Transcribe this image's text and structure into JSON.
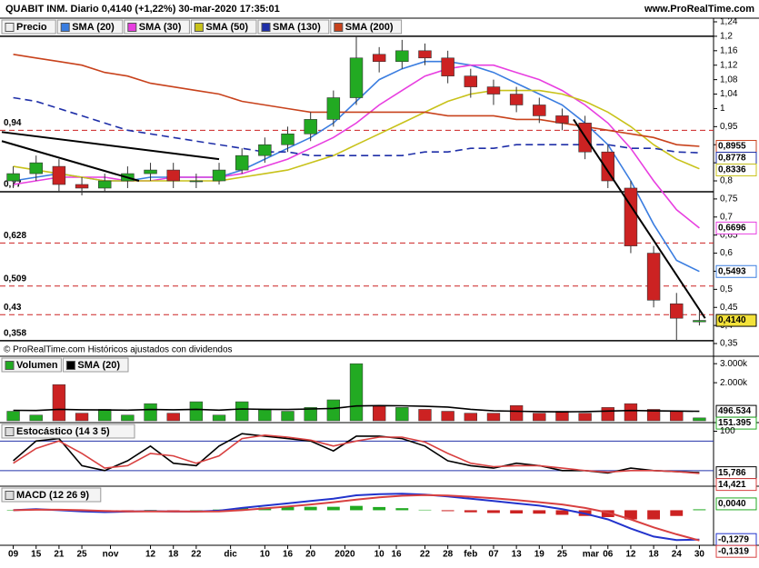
{
  "chart_data": [
    {
      "type": "candlestick",
      "title": "QUABIT INM. Diario 0,4140 (+1,22%) 30-mar-2020 17:35:01",
      "source": "www.ProRealTime.com",
      "note": "© ProRealTime.com Históricos ajustados con dividendos",
      "x": [
        2,
        6,
        10,
        14,
        18,
        22,
        26,
        30,
        34,
        38,
        42,
        46,
        50,
        54,
        58,
        62,
        66,
        70,
        74,
        78,
        82,
        86,
        90,
        94,
        98,
        102,
        106,
        110,
        114,
        118,
        122
      ],
      "xlim": [
        0,
        124
      ],
      "xticks": [
        {
          "value": 2,
          "label": "09"
        },
        {
          "value": 6,
          "label": "15"
        },
        {
          "value": 10,
          "label": "21"
        },
        {
          "value": 14,
          "label": "25"
        },
        {
          "value": 19,
          "label": "nov"
        },
        {
          "value": 26,
          "label": "12"
        },
        {
          "value": 30,
          "label": "18"
        },
        {
          "value": 34,
          "label": "22"
        },
        {
          "value": 40,
          "label": "dic"
        },
        {
          "value": 46,
          "label": "10"
        },
        {
          "value": 50,
          "label": "16"
        },
        {
          "value": 54,
          "label": "20"
        },
        {
          "value": 60,
          "label": "2020"
        },
        {
          "value": 66,
          "label": "10"
        },
        {
          "value": 69,
          "label": "16"
        },
        {
          "value": 74,
          "label": "22"
        },
        {
          "value": 78,
          "label": "28"
        },
        {
          "value": 82,
          "label": "feb"
        },
        {
          "value": 86,
          "label": "07"
        },
        {
          "value": 90,
          "label": "13"
        },
        {
          "value": 94,
          "label": "19"
        },
        {
          "value": 98,
          "label": "25"
        },
        {
          "value": 103,
          "label": "mar"
        },
        {
          "value": 106,
          "label": "06"
        },
        {
          "value": 110,
          "label": "12"
        },
        {
          "value": 114,
          "label": "18"
        },
        {
          "value": 118,
          "label": "24"
        },
        {
          "value": 122,
          "label": "30"
        }
      ],
      "ylim": [
        0.34,
        1.245
      ],
      "yticks": [
        {
          "value": 1.24,
          "label": "1,24"
        },
        {
          "value": 1.2,
          "label": "1,2"
        },
        {
          "value": 1.16,
          "label": "1,16"
        },
        {
          "value": 1.12,
          "label": "1,12"
        },
        {
          "value": 1.08,
          "label": "1,08"
        },
        {
          "value": 1.04,
          "label": "1,04"
        },
        1,
        {
          "value": 0.95,
          "label": "0,95"
        },
        {
          "value": 0.9,
          "label": "0,9"
        },
        {
          "value": 0.85,
          "label": "0,85"
        },
        {
          "value": 0.8,
          "label": "0,8"
        },
        {
          "value": 0.75,
          "label": "0,75"
        },
        {
          "value": 0.7,
          "label": "0,7"
        },
        {
          "value": 0.65,
          "label": "0,65"
        },
        {
          "value": 0.6,
          "label": "0,6"
        },
        {
          "value": 0.55,
          "label": "0,55"
        },
        {
          "value": 0.5,
          "label": "0,5"
        },
        {
          "value": 0.45,
          "label": "0,45"
        },
        {
          "value": 0.4,
          "label": "0,4"
        },
        {
          "value": 0.35,
          "label": "0,35"
        }
      ],
      "candles": {
        "name": "Precio",
        "up_color": "#22aa22",
        "down_color": "#cc2222",
        "last_label": "0,4140",
        "open": [
          0.8,
          0.82,
          0.84,
          0.79,
          0.78,
          0.8,
          0.82,
          0.83,
          0.8,
          0.8,
          0.83,
          0.87,
          0.9,
          0.93,
          0.97,
          1.03,
          1.15,
          1.13,
          1.16,
          1.14,
          1.09,
          1.06,
          1.04,
          1.01,
          0.98,
          0.96,
          0.88,
          0.78,
          0.6,
          0.46,
          0.41
        ],
        "high": [
          0.84,
          0.87,
          0.86,
          0.81,
          0.82,
          0.84,
          0.85,
          0.85,
          0.82,
          0.85,
          0.89,
          0.92,
          0.95,
          0.99,
          1.05,
          1.2,
          1.17,
          1.19,
          1.18,
          1.16,
          1.11,
          1.08,
          1.06,
          1.03,
          1.0,
          0.98,
          0.9,
          0.8,
          0.62,
          0.49,
          0.44
        ],
        "low": [
          0.78,
          0.8,
          0.77,
          0.76,
          0.77,
          0.78,
          0.8,
          0.78,
          0.78,
          0.79,
          0.82,
          0.85,
          0.88,
          0.91,
          0.95,
          1.01,
          1.1,
          1.11,
          1.12,
          1.07,
          1.03,
          1.01,
          0.99,
          0.96,
          0.94,
          0.86,
          0.78,
          0.6,
          0.45,
          0.36,
          0.4
        ],
        "close": [
          0.82,
          0.85,
          0.79,
          0.78,
          0.8,
          0.82,
          0.83,
          0.8,
          0.8,
          0.83,
          0.87,
          0.9,
          0.93,
          0.97,
          1.03,
          1.14,
          1.13,
          1.16,
          1.14,
          1.09,
          1.06,
          1.04,
          1.01,
          0.98,
          0.96,
          0.88,
          0.8,
          0.62,
          0.47,
          0.42,
          0.414
        ]
      },
      "series": [
        {
          "name": "SMA (20)",
          "color": "#3a7de0",
          "last_label": "0,5493",
          "values": [
            0.8,
            0.81,
            0.82,
            0.81,
            0.8,
            0.8,
            0.81,
            0.81,
            0.81,
            0.81,
            0.83,
            0.86,
            0.89,
            0.92,
            0.96,
            1.02,
            1.08,
            1.11,
            1.13,
            1.13,
            1.12,
            1.1,
            1.07,
            1.04,
            1.01,
            0.96,
            0.9,
            0.8,
            0.68,
            0.58,
            0.5493
          ]
        },
        {
          "name": "SMA (30)",
          "color": "#e83fe0",
          "last_label": "0,6696",
          "values": [
            0.79,
            0.8,
            0.81,
            0.81,
            0.81,
            0.8,
            0.8,
            0.81,
            0.81,
            0.81,
            0.82,
            0.84,
            0.86,
            0.89,
            0.92,
            0.96,
            1.01,
            1.05,
            1.09,
            1.11,
            1.12,
            1.12,
            1.1,
            1.08,
            1.05,
            1.01,
            0.96,
            0.89,
            0.8,
            0.72,
            0.6696
          ]
        },
        {
          "name": "SMA (50)",
          "color": "#c8c21a",
          "last_label": "0,8336",
          "values": [
            0.84,
            0.83,
            0.82,
            0.81,
            0.8,
            0.8,
            0.8,
            0.8,
            0.8,
            0.8,
            0.81,
            0.82,
            0.83,
            0.85,
            0.87,
            0.9,
            0.93,
            0.96,
            0.99,
            1.02,
            1.04,
            1.05,
            1.05,
            1.05,
            1.04,
            1.02,
            0.99,
            0.95,
            0.9,
            0.86,
            0.8336
          ]
        },
        {
          "name": "SMA (130)",
          "color": "#1f2fa8",
          "dashed": true,
          "last_label": "0,8778",
          "values": [
            1.03,
            1.02,
            1.0,
            0.98,
            0.96,
            0.94,
            0.93,
            0.92,
            0.91,
            0.9,
            0.89,
            0.88,
            0.88,
            0.87,
            0.87,
            0.87,
            0.87,
            0.87,
            0.88,
            0.88,
            0.89,
            0.89,
            0.9,
            0.9,
            0.9,
            0.9,
            0.9,
            0.89,
            0.89,
            0.88,
            0.8778
          ]
        },
        {
          "name": "SMA (200)",
          "color": "#c8421c",
          "last_label": "0,8955",
          "values": [
            1.15,
            1.14,
            1.13,
            1.12,
            1.1,
            1.09,
            1.07,
            1.06,
            1.05,
            1.04,
            1.02,
            1.01,
            1.0,
            0.99,
            0.99,
            0.99,
            0.99,
            0.99,
            0.99,
            0.98,
            0.98,
            0.98,
            0.97,
            0.97,
            0.96,
            0.95,
            0.94,
            0.93,
            0.92,
            0.9,
            0.8955
          ]
        }
      ],
      "levels": [
        {
          "value": 1.2,
          "style": "solid"
        },
        {
          "value": 0.94,
          "label": "0,94",
          "style": "dashed"
        },
        {
          "value": 0.77,
          "label": "0,77",
          "style": "solid"
        },
        {
          "value": 0.628,
          "label": "0,628",
          "style": "dashed"
        },
        {
          "value": 0.509,
          "label": "0,509",
          "style": "dashed"
        },
        {
          "value": 0.43,
          "label": "0,43",
          "style": "dashed"
        },
        {
          "value": 0.358,
          "label": "0,358",
          "style": "solid"
        }
      ],
      "trendlines": [
        {
          "x": [
            0,
            38
          ],
          "y": [
            0.935,
            0.86
          ]
        },
        {
          "x": [
            0,
            24
          ],
          "y": [
            0.91,
            0.8
          ]
        },
        {
          "x": [
            100,
            123
          ],
          "y": [
            0.97,
            0.42
          ]
        }
      ]
    },
    {
      "type": "volume",
      "ylim": [
        0,
        3200000
      ],
      "yticks": [
        {
          "value": 3000000,
          "label": "3.000k"
        },
        {
          "value": 2000000,
          "label": "2.000k"
        }
      ],
      "series": [
        {
          "name": "Volumen",
          "color": "#22aa22",
          "last_label": "151.395",
          "values": [
            500000,
            300000,
            1900000,
            400000,
            600000,
            300000,
            900000,
            400000,
            1000000,
            300000,
            1000000,
            600000,
            500000,
            700000,
            1100000,
            3000000,
            800000,
            700000,
            600000,
            500000,
            400000,
            400000,
            800000,
            400000,
            500000,
            400000,
            700000,
            900000,
            600000,
            500000,
            151395
          ]
        },
        {
          "name": "SMA (20)",
          "color": "#000000",
          "last_label": "496.534",
          "values": [
            550000,
            540000,
            600000,
            580000,
            570000,
            560000,
            590000,
            580000,
            600000,
            560000,
            620000,
            600000,
            590000,
            620000,
            650000,
            780000,
            800000,
            790000,
            760000,
            720000,
            600000,
            520000,
            500000,
            480000,
            470000,
            480000,
            510000,
            540000,
            520000,
            510000,
            496534
          ]
        }
      ]
    },
    {
      "type": "stochastic",
      "title": "Estocástico (14 3 5)",
      "ylim": [
        -8,
        112
      ],
      "yticks": [
        100
      ],
      "levels": [
        80,
        20
      ],
      "level_color": "#2233aa",
      "series": [
        {
          "color": "#000000",
          "last_label": "15,786",
          "values": [
            40,
            80,
            85,
            30,
            20,
            40,
            70,
            35,
            30,
            70,
            95,
            90,
            85,
            80,
            60,
            90,
            90,
            85,
            70,
            40,
            30,
            25,
            35,
            30,
            20,
            20,
            15,
            25,
            20,
            18,
            15.786
          ]
        },
        {
          "color": "#d84040",
          "last_label": "14,421",
          "values": [
            35,
            65,
            80,
            55,
            25,
            30,
            55,
            50,
            35,
            50,
            85,
            92,
            88,
            82,
            70,
            80,
            88,
            88,
            78,
            55,
            35,
            28,
            30,
            30,
            25,
            20,
            17,
            20,
            20,
            18,
            14.421
          ]
        }
      ]
    },
    {
      "type": "macd",
      "title": "MACD (12 26 9)",
      "ylim": [
        -0.145,
        0.085
      ],
      "histogram": {
        "up_color": "#22aa22",
        "down_color": "#cc2222",
        "last_label": "0,0040",
        "values": [
          0,
          0.003,
          -0.002,
          -0.005,
          -0.005,
          -0.001,
          0.001,
          -0.001,
          0,
          0.003,
          0.01,
          0.012,
          0.014,
          0.015,
          0.015,
          0.019,
          0.014,
          0.009,
          0.002,
          -0.004,
          -0.009,
          -0.012,
          -0.014,
          -0.015,
          -0.02,
          -0.025,
          -0.03,
          -0.04,
          -0.04,
          -0.025,
          0.004
        ]
      },
      "series": [
        {
          "color": "#2233cc",
          "last_label": "-0,1279",
          "values": [
            0,
            0.005,
            0,
            -0.005,
            -0.008,
            -0.006,
            -0.004,
            -0.006,
            -0.006,
            -0.002,
            0.01,
            0.02,
            0.03,
            0.04,
            0.05,
            0.065,
            0.07,
            0.072,
            0.068,
            0.06,
            0.05,
            0.04,
            0.03,
            0.02,
            0.005,
            -0.015,
            -0.04,
            -0.08,
            -0.115,
            -0.13,
            -0.1279
          ]
        },
        {
          "color": "#d84040",
          "last_label": "-0,1319",
          "values": [
            0,
            0.002,
            0.002,
            0,
            -0.003,
            -0.005,
            -0.005,
            -0.005,
            -0.006,
            -0.005,
            0,
            0.008,
            0.016,
            0.025,
            0.035,
            0.046,
            0.056,
            0.063,
            0.066,
            0.064,
            0.059,
            0.052,
            0.044,
            0.035,
            0.025,
            0.01,
            -0.01,
            -0.04,
            -0.075,
            -0.105,
            -0.1319
          ]
        }
      ]
    }
  ]
}
